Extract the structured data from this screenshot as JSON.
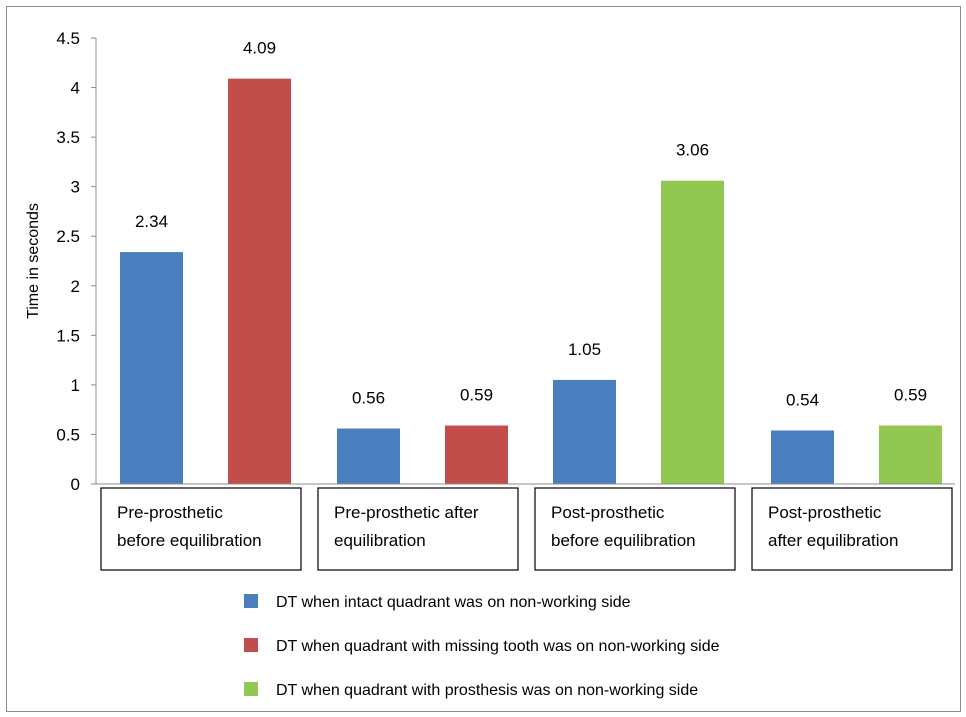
{
  "chart_data": {
    "type": "bar",
    "ylabel": "Time in seconds",
    "ylim": [
      0,
      4.5
    ],
    "yticks": [
      "0",
      "0.5",
      "1",
      "1.5",
      "2",
      "2.5",
      "3",
      "3.5",
      "4",
      "4.5"
    ],
    "grid": false,
    "legend_position": "bottom",
    "categories": [
      [
        "Pre-prosthetic",
        "before equilibration"
      ],
      [
        "Pre-prosthetic after",
        "equilibration"
      ],
      [
        "Post-prosthetic",
        "before equilibration"
      ],
      [
        "Post-prosthetic",
        "after equilibration"
      ]
    ],
    "series": [
      {
        "name": "DT when intact quadrant was on non-working side",
        "color": "#4a7ebf",
        "values": [
          2.34,
          0.56,
          1.05,
          0.54
        ]
      },
      {
        "name": "DT when quadrant with missing tooth was on non-working side",
        "color": "#c24e4b",
        "values": [
          4.09,
          0.59,
          null,
          null
        ]
      },
      {
        "name": "DT when quadrant with prosthesis was on non-working side",
        "color": "#92c752",
        "values": [
          null,
          null,
          3.06,
          0.59
        ]
      }
    ],
    "data_labels": [
      [
        "2.34",
        "4.09"
      ],
      [
        "0.56",
        "0.59"
      ],
      [
        "1.05",
        "3.06"
      ],
      [
        "0.54",
        "0.59"
      ]
    ]
  }
}
